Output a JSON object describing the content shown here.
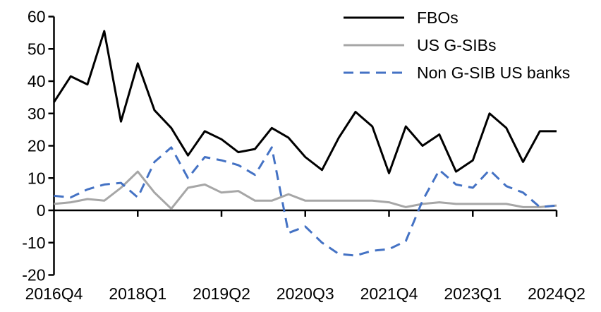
{
  "chart_data": {
    "type": "line",
    "categories": [
      "2016Q4",
      "2017Q1",
      "2017Q2",
      "2017Q3",
      "2017Q4",
      "2018Q1",
      "2018Q2",
      "2018Q3",
      "2018Q4",
      "2019Q1",
      "2019Q2",
      "2019Q3",
      "2019Q4",
      "2020Q1",
      "2020Q2",
      "2020Q3",
      "2020Q4",
      "2021Q1",
      "2021Q2",
      "2021Q3",
      "2021Q4",
      "2022Q1",
      "2022Q2",
      "2022Q3",
      "2022Q4",
      "2023Q1",
      "2023Q2",
      "2023Q3",
      "2023Q4",
      "2024Q1",
      "2024Q2"
    ],
    "x_tick_labels": [
      "2016Q4",
      "2018Q1",
      "2019Q2",
      "2020Q3",
      "2021Q4",
      "2023Q1",
      "2024Q2"
    ],
    "x_tick_indices": [
      0,
      5,
      10,
      15,
      20,
      25,
      30
    ],
    "y_ticks": [
      60,
      50,
      40,
      30,
      20,
      10,
      0,
      -10,
      -20
    ],
    "ylim": [
      -20,
      60
    ],
    "xlabel": "",
    "ylabel": "",
    "grid": false,
    "legend_position": "top-right",
    "series": [
      {
        "name": "FBOs",
        "color": "#000000",
        "dash": "",
        "values": [
          33.5,
          41.5,
          39,
          55.5,
          27.5,
          45.5,
          31,
          25.5,
          17,
          24.5,
          22,
          18,
          19,
          25.5,
          22.5,
          16.5,
          12.5,
          22.5,
          30.5,
          26,
          11.5,
          26,
          20,
          23.5,
          12,
          15.5,
          30,
          25.5,
          15,
          24.5,
          24.5
        ]
      },
      {
        "name": "US G-SIBs",
        "color": "#a6a6a6",
        "dash": "",
        "values": [
          2,
          2.5,
          3.5,
          3,
          7,
          12,
          5.5,
          0.5,
          7,
          8,
          5.5,
          6,
          3,
          3,
          5,
          3,
          3,
          3,
          3,
          3,
          2.5,
          1,
          2,
          2.5,
          2,
          2,
          2,
          2,
          1,
          1,
          1.5
        ]
      },
      {
        "name": "Non G-SIB US banks",
        "color": "#4472c4",
        "dash": "14 9",
        "values": [
          4.5,
          4,
          6.5,
          8,
          8.5,
          4,
          15,
          19.5,
          10,
          16.5,
          15.5,
          14,
          11,
          19.5,
          -7,
          -5,
          -10,
          -13.5,
          -14,
          -12.5,
          -12,
          -9.5,
          3,
          12.5,
          8,
          7,
          12.5,
          7.5,
          5.5,
          1,
          1.5
        ]
      }
    ]
  }
}
